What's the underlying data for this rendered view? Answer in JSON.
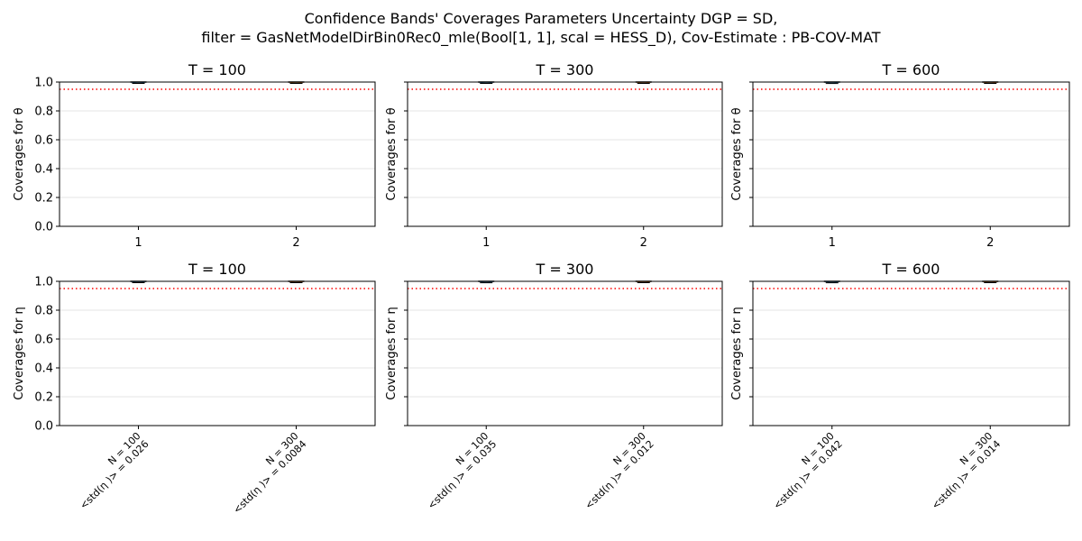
{
  "figure": {
    "title_line1": "Confidence Bands' Coverages Parameters Uncertainty DGP = SD,",
    "title_line2": "filter = GasNetModelDirBin0Rec0_mle(Bool[1, 1], scal = HESS_D), Cov-Estimate : PB-COV-MAT",
    "reference_line": {
      "value": 0.95,
      "color": "#ff0000",
      "style": "dotted"
    },
    "violin_colors": [
      "#1f77b4",
      "#ff7f0e"
    ]
  },
  "chart_data": [
    {
      "type": "violin",
      "title": "T = 100",
      "ylabel": "Coverages for θ",
      "ylim": [
        0,
        1
      ],
      "yticks": [
        "0.0",
        "0.2",
        "0.4",
        "0.6",
        "0.8",
        "1.0"
      ],
      "categories": [
        "1",
        "2"
      ],
      "values": [
        0.998,
        0.998
      ]
    },
    {
      "type": "violin",
      "title": "T = 300",
      "ylabel": "Coverages for θ",
      "ylim": [
        0,
        1
      ],
      "yticks": [
        "",
        "",
        "",
        "",
        "",
        ""
      ],
      "categories": [
        "1",
        "2"
      ],
      "values": [
        0.998,
        0.998
      ]
    },
    {
      "type": "violin",
      "title": "T = 600",
      "ylabel": "Coverages for θ",
      "ylim": [
        0,
        1
      ],
      "yticks": [
        "",
        "",
        "",
        "",
        "",
        ""
      ],
      "categories": [
        "1",
        "2"
      ],
      "values": [
        0.99,
        0.995
      ]
    },
    {
      "type": "violin",
      "title": "T = 100",
      "ylabel": "Coverages for η",
      "ylim": [
        0,
        1
      ],
      "yticks": [
        "0.0",
        "0.2",
        "0.4",
        "0.6",
        "0.8",
        "1.0"
      ],
      "categories": [
        {
          "line1": "N = 100",
          "line2": "<std(η )> = 0.026"
        },
        {
          "line1": "N = 300",
          "line2": "<std(η )> = 0.0084"
        }
      ],
      "values": [
        0.998,
        0.998
      ]
    },
    {
      "type": "violin",
      "title": "T = 300",
      "ylabel": "Coverages for η",
      "ylim": [
        0,
        1
      ],
      "yticks": [
        "",
        "",
        "",
        "",
        "",
        ""
      ],
      "categories": [
        {
          "line1": "N = 100",
          "line2": "<std(η )> = 0.035"
        },
        {
          "line1": "N = 300",
          "line2": "<std(η )> = 0.012"
        }
      ],
      "values": [
        0.99,
        0.998
      ]
    },
    {
      "type": "violin",
      "title": "T = 600",
      "ylabel": "Coverages for η",
      "ylim": [
        0,
        1
      ],
      "yticks": [
        "",
        "",
        "",
        "",
        "",
        ""
      ],
      "categories": [
        {
          "line1": "N = 100",
          "line2": "<std(η )> = 0.042"
        },
        {
          "line1": "N = 300",
          "line2": "<std(η )> = 0.014"
        }
      ],
      "values": [
        0.99,
        0.994
      ]
    }
  ]
}
